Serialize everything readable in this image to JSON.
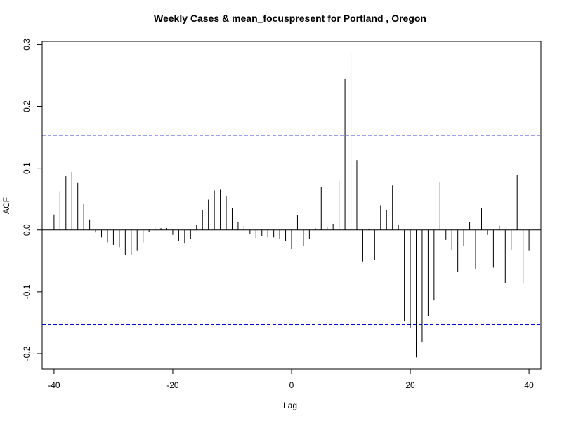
{
  "chart_data": {
    "type": "bar",
    "title": "Weekly Cases & mean_focuspresent for Portland , Oregon",
    "xlabel": "Lag",
    "ylabel": "ACF",
    "xlim": [
      -42,
      42
    ],
    "ylim": [
      -0.225,
      0.305
    ],
    "x_ticks": [
      -40,
      -20,
      0,
      20,
      40
    ],
    "y_ticks": [
      -0.2,
      -0.1,
      0.0,
      0.1,
      0.2,
      0.3
    ],
    "x_tick_labels": [
      "-40",
      "-20",
      "0",
      "20",
      "40"
    ],
    "y_tick_labels": [
      "-0.2",
      "-0.1",
      "0.0",
      "0.1",
      "0.2",
      "0.3"
    ],
    "confidence_bounds": [
      0.153,
      -0.153
    ],
    "bound_color": "#0000cc",
    "line_color": "#000000",
    "lags": [
      -40,
      -39,
      -38,
      -37,
      -36,
      -35,
      -34,
      -33,
      -32,
      -31,
      -30,
      -29,
      -28,
      -27,
      -26,
      -25,
      -24,
      -23,
      -22,
      -21,
      -20,
      -19,
      -18,
      -17,
      -16,
      -15,
      -14,
      -13,
      -12,
      -11,
      -10,
      -9,
      -8,
      -7,
      -6,
      -5,
      -4,
      -3,
      -2,
      -1,
      0,
      1,
      2,
      3,
      4,
      5,
      6,
      7,
      8,
      9,
      10,
      11,
      12,
      13,
      14,
      15,
      16,
      17,
      18,
      19,
      20,
      21,
      22,
      23,
      24,
      25,
      26,
      27,
      28,
      29,
      30,
      31,
      32,
      33,
      34,
      35,
      36,
      37,
      38,
      39,
      40
    ],
    "acf": [
      0.025,
      0.063,
      0.087,
      0.094,
      0.076,
      0.042,
      0.017,
      -0.004,
      -0.012,
      -0.02,
      -0.024,
      -0.028,
      -0.04,
      -0.04,
      -0.034,
      -0.02,
      -0.003,
      0.005,
      0.003,
      0.003,
      -0.008,
      -0.018,
      -0.022,
      -0.015,
      0.008,
      0.032,
      0.049,
      0.064,
      0.065,
      0.055,
      0.035,
      0.013,
      0.007,
      -0.007,
      -0.013,
      -0.01,
      -0.012,
      -0.012,
      -0.014,
      -0.018,
      -0.031,
      0.024,
      -0.026,
      -0.014,
      0.003,
      0.07,
      0.005,
      0.01,
      0.079,
      0.245,
      0.287,
      0.113,
      -0.051,
      0.002,
      -0.048,
      0.04,
      0.032,
      0.072,
      0.009,
      -0.148,
      -0.158,
      -0.206,
      -0.182,
      -0.139,
      -0.114,
      0.077,
      -0.016,
      -0.032,
      -0.068,
      -0.026,
      0.013,
      -0.063,
      0.036,
      -0.008,
      -0.061,
      0.007,
      -0.086,
      -0.032,
      0.089,
      -0.087,
      -0.034
    ]
  }
}
